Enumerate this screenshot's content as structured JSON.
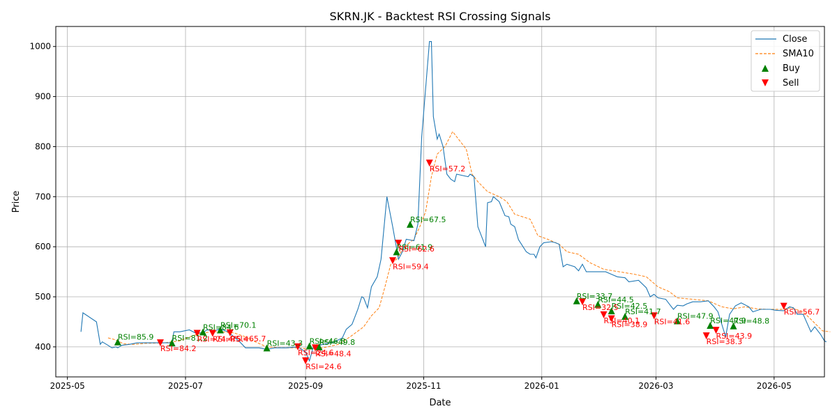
{
  "chart_data": {
    "type": "line",
    "title": "SKRN.JK - Backtest RSI Crossing Signals",
    "xlabel": "Date",
    "ylabel": "Price",
    "xlim": [
      "2025-04-25",
      "2026-05-27"
    ],
    "ylim": [
      340,
      1040
    ],
    "x_ticks": [
      "2025-05",
      "2025-07",
      "2025-09",
      "2025-11",
      "2026-01",
      "2026-03",
      "2026-05"
    ],
    "y_ticks": [
      400,
      500,
      600,
      700,
      800,
      900,
      1000
    ],
    "grid": true,
    "legend": "top-right",
    "colors": {
      "close": "#1f77b4",
      "sma": "#ff7f0e",
      "buy": "#008000",
      "sell": "#ff0000"
    },
    "series": [
      {
        "name": "Close",
        "style": "solid",
        "points": [
          [
            "2025-05-08",
            430
          ],
          [
            "2025-05-09",
            468
          ],
          [
            "2025-05-16",
            450
          ],
          [
            "2025-05-18",
            405
          ],
          [
            "2025-05-19",
            410
          ],
          [
            "2025-05-22",
            403
          ],
          [
            "2025-05-24",
            398
          ],
          [
            "2025-05-26",
            400
          ],
          [
            "2025-05-27",
            398
          ],
          [
            "2025-05-29",
            403
          ],
          [
            "2025-06-02",
            405
          ],
          [
            "2025-06-06",
            408
          ],
          [
            "2025-06-12",
            408
          ],
          [
            "2025-06-18",
            408
          ],
          [
            "2025-06-24",
            408
          ],
          [
            "2025-06-25",
            430
          ],
          [
            "2025-06-28",
            430
          ],
          [
            "2025-07-03",
            434
          ],
          [
            "2025-07-06",
            428
          ],
          [
            "2025-07-10",
            428
          ],
          [
            "2025-07-12",
            434
          ],
          [
            "2025-07-16",
            432
          ],
          [
            "2025-07-19",
            436
          ],
          [
            "2025-07-23",
            430
          ],
          [
            "2025-07-26",
            420
          ],
          [
            "2025-07-29",
            410
          ],
          [
            "2025-08-01",
            398
          ],
          [
            "2025-08-08",
            398
          ],
          [
            "2025-08-12",
            395
          ],
          [
            "2025-08-16",
            398
          ],
          [
            "2025-08-22",
            398
          ],
          [
            "2025-08-28",
            400
          ],
          [
            "2025-09-01",
            390
          ],
          [
            "2025-09-03",
            372
          ],
          [
            "2025-09-05",
            400
          ],
          [
            "2025-09-10",
            405
          ],
          [
            "2025-09-16",
            410
          ],
          [
            "2025-09-20",
            418
          ],
          [
            "2025-09-22",
            435
          ],
          [
            "2025-09-25",
            445
          ],
          [
            "2025-09-28",
            475
          ],
          [
            "2025-09-30",
            500
          ],
          [
            "2025-10-01",
            498
          ],
          [
            "2025-10-03",
            478
          ],
          [
            "2025-10-05",
            520
          ],
          [
            "2025-10-08",
            540
          ],
          [
            "2025-10-10",
            575
          ],
          [
            "2025-10-13",
            700
          ],
          [
            "2025-10-16",
            640
          ],
          [
            "2025-10-19",
            575
          ],
          [
            "2025-10-21",
            590
          ],
          [
            "2025-10-23",
            615
          ],
          [
            "2025-10-27",
            612
          ],
          [
            "2025-10-29",
            645
          ],
          [
            "2025-10-31",
            820
          ],
          [
            "2025-11-04",
            1010
          ],
          [
            "2025-11-05",
            1010
          ],
          [
            "2025-11-06",
            860
          ],
          [
            "2025-11-08",
            815
          ],
          [
            "2025-11-09",
            825
          ],
          [
            "2025-11-11",
            800
          ],
          [
            "2025-11-13",
            745
          ],
          [
            "2025-11-15",
            735
          ],
          [
            "2025-11-17",
            730
          ],
          [
            "2025-11-18",
            745
          ],
          [
            "2025-11-24",
            740
          ],
          [
            "2025-11-25",
            745
          ],
          [
            "2025-11-27",
            740
          ],
          [
            "2025-11-29",
            640
          ],
          [
            "2025-12-03",
            600
          ],
          [
            "2025-12-04",
            688
          ],
          [
            "2025-12-06",
            690
          ],
          [
            "2025-12-07",
            700
          ],
          [
            "2025-12-10",
            690
          ],
          [
            "2025-12-13",
            662
          ],
          [
            "2025-12-15",
            660
          ],
          [
            "2025-12-16",
            645
          ],
          [
            "2025-12-18",
            640
          ],
          [
            "2025-12-20",
            614
          ],
          [
            "2025-12-24",
            590
          ],
          [
            "2025-12-26",
            585
          ],
          [
            "2025-12-28",
            585
          ],
          [
            "2025-12-29",
            578
          ],
          [
            "2025-12-31",
            600
          ],
          [
            "2026-01-02",
            608
          ],
          [
            "2026-01-06",
            610
          ],
          [
            "2026-01-08",
            608
          ],
          [
            "2026-01-10",
            605
          ],
          [
            "2026-01-12",
            560
          ],
          [
            "2026-01-14",
            565
          ],
          [
            "2026-01-18",
            560
          ],
          [
            "2026-01-20",
            552
          ],
          [
            "2026-01-22",
            565
          ],
          [
            "2026-01-24",
            550
          ],
          [
            "2026-01-28",
            550
          ],
          [
            "2026-02-03",
            550
          ],
          [
            "2026-02-06",
            545
          ],
          [
            "2026-02-09",
            540
          ],
          [
            "2026-02-13",
            538
          ],
          [
            "2026-02-15",
            530
          ],
          [
            "2026-02-20",
            533
          ],
          [
            "2026-02-24",
            518
          ],
          [
            "2026-02-26",
            500
          ],
          [
            "2026-02-28",
            505
          ],
          [
            "2026-03-02",
            498
          ],
          [
            "2026-03-06",
            495
          ],
          [
            "2026-03-08",
            485
          ],
          [
            "2026-03-10",
            475
          ],
          [
            "2026-03-12",
            483
          ],
          [
            "2026-03-15",
            482
          ],
          [
            "2026-03-17",
            486
          ],
          [
            "2026-03-20",
            490
          ],
          [
            "2026-03-24",
            490
          ],
          [
            "2026-03-28",
            492
          ],
          [
            "2026-03-31",
            480
          ],
          [
            "2026-04-02",
            470
          ],
          [
            "2026-04-06",
            420
          ],
          [
            "2026-04-08",
            465
          ],
          [
            "2026-04-11",
            482
          ],
          [
            "2026-04-14",
            488
          ],
          [
            "2026-04-18",
            480
          ],
          [
            "2026-04-20",
            470
          ],
          [
            "2026-04-24",
            475
          ],
          [
            "2026-04-29",
            475
          ],
          [
            "2026-05-02",
            473
          ],
          [
            "2026-05-06",
            472
          ],
          [
            "2026-05-09",
            480
          ],
          [
            "2026-05-11",
            478
          ],
          [
            "2026-05-13",
            465
          ],
          [
            "2026-05-16",
            465
          ],
          [
            "2026-05-20",
            430
          ],
          [
            "2026-05-22",
            440
          ],
          [
            "2026-05-25",
            425
          ],
          [
            "2026-05-27",
            412
          ],
          [
            "2026-05-28",
            410
          ]
        ]
      },
      {
        "name": "SMA10",
        "style": "dashed",
        "points": [
          [
            "2025-05-22",
            418
          ],
          [
            "2025-05-25",
            415
          ],
          [
            "2025-05-27",
            412
          ],
          [
            "2025-05-30",
            406
          ],
          [
            "2025-06-04",
            405
          ],
          [
            "2025-06-10",
            407
          ],
          [
            "2025-06-20",
            408
          ],
          [
            "2025-06-28",
            412
          ],
          [
            "2025-07-03",
            420
          ],
          [
            "2025-07-08",
            426
          ],
          [
            "2025-07-14",
            430
          ],
          [
            "2025-07-20",
            430
          ],
          [
            "2025-07-26",
            428
          ],
          [
            "2025-08-01",
            420
          ],
          [
            "2025-08-06",
            410
          ],
          [
            "2025-08-12",
            400
          ],
          [
            "2025-08-20",
            398
          ],
          [
            "2025-08-28",
            398
          ],
          [
            "2025-09-03",
            396
          ],
          [
            "2025-09-10",
            398
          ],
          [
            "2025-09-18",
            405
          ],
          [
            "2025-09-24",
            420
          ],
          [
            "2025-10-01",
            440
          ],
          [
            "2025-10-05",
            462
          ],
          [
            "2025-10-09",
            478
          ],
          [
            "2025-10-12",
            520
          ],
          [
            "2025-10-15",
            565
          ],
          [
            "2025-10-18",
            575
          ],
          [
            "2025-10-22",
            600
          ],
          [
            "2025-10-27",
            615
          ],
          [
            "2025-10-30",
            640
          ],
          [
            "2025-11-02",
            670
          ],
          [
            "2025-11-05",
            740
          ],
          [
            "2025-11-08",
            785
          ],
          [
            "2025-11-12",
            800
          ],
          [
            "2025-11-16",
            830
          ],
          [
            "2025-11-20",
            810
          ],
          [
            "2025-11-23",
            795
          ],
          [
            "2025-11-26",
            745
          ],
          [
            "2025-11-29",
            730
          ],
          [
            "2025-12-04",
            710
          ],
          [
            "2025-12-10",
            700
          ],
          [
            "2025-12-14",
            690
          ],
          [
            "2025-12-18",
            665
          ],
          [
            "2025-12-22",
            660
          ],
          [
            "2025-12-26",
            655
          ],
          [
            "2025-12-30",
            622
          ],
          [
            "2026-01-04",
            615
          ],
          [
            "2026-01-10",
            605
          ],
          [
            "2026-01-14",
            590
          ],
          [
            "2026-01-20",
            585
          ],
          [
            "2026-01-26",
            568
          ],
          [
            "2026-02-02",
            555
          ],
          [
            "2026-02-10",
            550
          ],
          [
            "2026-02-18",
            545
          ],
          [
            "2026-02-24",
            540
          ],
          [
            "2026-03-02",
            520
          ],
          [
            "2026-03-08",
            510
          ],
          [
            "2026-03-12",
            498
          ],
          [
            "2026-03-20",
            495
          ],
          [
            "2026-03-28",
            492
          ],
          [
            "2026-04-04",
            480
          ],
          [
            "2026-04-10",
            476
          ],
          [
            "2026-04-16",
            480
          ],
          [
            "2026-04-22",
            476
          ],
          [
            "2026-04-28",
            475
          ],
          [
            "2026-05-05",
            475
          ],
          [
            "2026-05-10",
            478
          ],
          [
            "2026-05-16",
            470
          ],
          [
            "2026-05-20",
            455
          ],
          [
            "2026-05-26",
            432
          ],
          [
            "2026-05-30",
            430
          ]
        ]
      }
    ],
    "buy_signals": [
      {
        "date": "2025-05-27",
        "price": 410,
        "label": "RSI=85.9"
      },
      {
        "date": "2025-06-24",
        "price": 408,
        "label": "RSI=81.2"
      },
      {
        "date": "2025-07-10",
        "price": 430,
        "label": "RSI=84.6"
      },
      {
        "date": "2025-07-19",
        "price": 434,
        "label": "RSI=70.1"
      },
      {
        "date": "2025-08-12",
        "price": 398,
        "label": "RSI=43.3"
      },
      {
        "date": "2025-09-03",
        "price": 402,
        "label": "RSI=46.8"
      },
      {
        "date": "2025-09-08",
        "price": 400,
        "label": "RSI=49.8"
      },
      {
        "date": "2025-10-18",
        "price": 590,
        "label": "RSI=61.9"
      },
      {
        "date": "2025-10-25",
        "price": 645,
        "label": "RSI=67.5"
      },
      {
        "date": "2026-01-19",
        "price": 492,
        "label": "RSI=33.7"
      },
      {
        "date": "2026-01-30",
        "price": 485,
        "label": "RSI=44.5"
      },
      {
        "date": "2026-02-06",
        "price": 472,
        "label": "RSI=42.5"
      },
      {
        "date": "2026-02-13",
        "price": 461,
        "label": "RSI=41.7"
      },
      {
        "date": "2026-03-12",
        "price": 452,
        "label": "RSI=47.9"
      },
      {
        "date": "2026-03-29",
        "price": 443,
        "label": "RSI=47.9"
      },
      {
        "date": "2026-04-10",
        "price": 442,
        "label": "RSI=48.8"
      }
    ],
    "sell_signals": [
      {
        "date": "2025-06-18",
        "price": 408,
        "label": "RSI=84.2"
      },
      {
        "date": "2025-07-07",
        "price": 427,
        "label": "RSI=74.4"
      },
      {
        "date": "2025-07-15",
        "price": 427,
        "label": "RSI=75.4"
      },
      {
        "date": "2025-07-24",
        "price": 428,
        "label": "RSI=65.7"
      },
      {
        "date": "2025-08-28",
        "price": 400,
        "label": "RSI=24.6"
      },
      {
        "date": "2025-09-01",
        "price": 372,
        "label": "RSI=24.6"
      },
      {
        "date": "2025-09-06",
        "price": 398,
        "label": "RSI=48.4"
      },
      {
        "date": "2025-10-16",
        "price": 572,
        "label": "RSI=59.4"
      },
      {
        "date": "2025-10-19",
        "price": 607,
        "label": "RSI=62.6"
      },
      {
        "date": "2025-11-04",
        "price": 767,
        "label": "RSI=57.2"
      },
      {
        "date": "2026-01-22",
        "price": 490,
        "label": "RSI=32.5"
      },
      {
        "date": "2026-02-02",
        "price": 464,
        "label": "RSI=40.1"
      },
      {
        "date": "2026-02-06",
        "price": 456,
        "label": "RSI=38.9"
      },
      {
        "date": "2026-02-28",
        "price": 462,
        "label": "RSI=41.6"
      },
      {
        "date": "2026-03-27",
        "price": 422,
        "label": "RSI=38.3"
      },
      {
        "date": "2026-04-01",
        "price": 433,
        "label": "RSI=43.9"
      },
      {
        "date": "2026-05-06",
        "price": 481,
        "label": "RSI=56.7"
      }
    ],
    "legend_entries": [
      "Close",
      "SMA10",
      "Buy",
      "Sell"
    ]
  }
}
